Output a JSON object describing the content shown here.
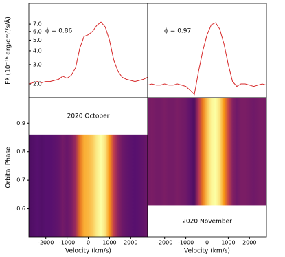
{
  "chart_data": [
    {
      "type": "line",
      "color": "#d62728",
      "log_y": true,
      "annotation": "ϕ = 0.86",
      "ylabel": "Fλ (10⁻¹⁶ erg/cm²/s/Å)",
      "xlim": [
        -2800,
        2800
      ],
      "ylim": [
        1.5,
        10.8
      ],
      "yticks": [
        {
          "value": 2,
          "label": "2.0"
        },
        {
          "value": 3,
          "label": "3.0"
        },
        {
          "value": 4,
          "label": "4.0"
        },
        {
          "value": 5,
          "label": "5.0"
        },
        {
          "value": 6,
          "label": "6.0"
        },
        {
          "value": 7,
          "label": "7.0"
        }
      ],
      "x": [
        -2800,
        -2600,
        -2400,
        -2200,
        -2000,
        -1800,
        -1600,
        -1400,
        -1200,
        -1000,
        -800,
        -600,
        -400,
        -200,
        0,
        200,
        400,
        600,
        800,
        1000,
        1200,
        1400,
        1600,
        1800,
        2000,
        2200,
        2400,
        2600,
        2800
      ],
      "values": [
        2.0,
        2.05,
        2.1,
        2.05,
        2.1,
        2.1,
        2.15,
        2.2,
        2.35,
        2.25,
        2.4,
        2.8,
        4.2,
        5.4,
        5.6,
        6.0,
        6.8,
        7.3,
        6.6,
        5.0,
        3.3,
        2.6,
        2.3,
        2.2,
        2.15,
        2.1,
        2.15,
        2.2,
        2.3
      ]
    },
    {
      "type": "line",
      "color": "#d62728",
      "log_y": true,
      "annotation": "ϕ = 0.97",
      "xlim": [
        -2800,
        2800
      ],
      "ylim": [
        1.5,
        10.8
      ],
      "x": [
        -2800,
        -2600,
        -2400,
        -2200,
        -2000,
        -1800,
        -1600,
        -1400,
        -1200,
        -1000,
        -800,
        -600,
        -400,
        -200,
        0,
        200,
        400,
        600,
        800,
        1000,
        1200,
        1400,
        1600,
        1800,
        2000,
        2200,
        2400,
        2600,
        2800
      ],
      "values": [
        1.95,
        2.0,
        1.95,
        1.95,
        2.0,
        1.95,
        1.95,
        2.0,
        1.95,
        1.9,
        1.75,
        1.6,
        2.6,
        4.0,
        5.6,
        6.9,
        7.2,
        6.3,
        4.6,
        3.0,
        2.1,
        1.9,
        2.0,
        2.0,
        1.95,
        1.9,
        1.95,
        2.0,
        1.95
      ]
    },
    {
      "type": "trailed",
      "annotation": "2020 October",
      "xlabel": "Velocity (km/s)",
      "ylabel": "Orbital Phase",
      "xlim": [
        -2800,
        2800
      ],
      "ylim": [
        0.5,
        0.99
      ],
      "phase_range": [
        0.5,
        0.86
      ],
      "xticks": [
        -2000,
        -1000,
        0,
        1000,
        2000
      ],
      "yticks": [
        0.6,
        0.7,
        0.8,
        0.9
      ]
    },
    {
      "type": "trailed",
      "annotation": "2020 November",
      "xlabel": "Velocity (km/s)",
      "xlim": [
        -2800,
        2800
      ],
      "ylim": [
        0.5,
        0.99
      ],
      "phase_range": [
        0.61,
        0.99
      ],
      "xticks": [
        -2000,
        -1000,
        0,
        1000,
        2000
      ]
    }
  ]
}
